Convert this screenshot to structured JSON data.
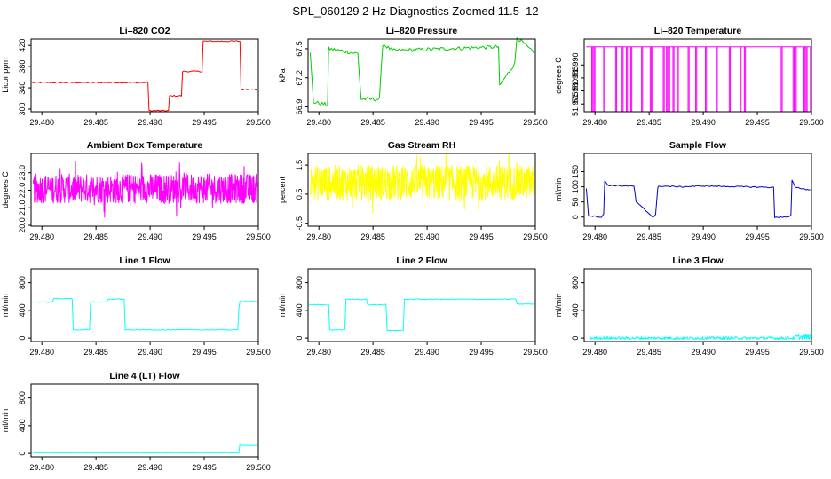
{
  "title": "SPL_060129  2 Hz Diagnostics Zoomed 11.5–12",
  "colors": {
    "co2": "#ff0000",
    "pressure": "#00cc00",
    "temperature": "#ff00ff",
    "ambient": "#ff00ff",
    "rh": "#ffff00",
    "sample": "#0000cc",
    "line": "#00ffff"
  },
  "chart_data": [
    {
      "type": "line",
      "title": "Li–820 CO2",
      "ylabel": "Licor ppm",
      "xlim": [
        29.479,
        29.5
      ],
      "ylim": [
        295,
        432
      ],
      "xticks": [
        29.48,
        29.485,
        29.49,
        29.495,
        29.5
      ],
      "xtick_labels": [
        "29.480",
        "29.485",
        "29.490",
        "29.495",
        "29.500"
      ],
      "yticks": [
        300,
        340,
        380,
        420
      ],
      "ytick_labels": [
        "300",
        "340",
        "380",
        "420"
      ],
      "color": "#ff0000",
      "noise": 1.2,
      "x": [
        29.4791,
        29.4898,
        29.4899,
        29.4917,
        29.4918,
        29.4929,
        29.493,
        29.4948,
        29.4949,
        29.4983,
        29.4984,
        29.4999
      ],
      "y": [
        350,
        350,
        297,
        297,
        325,
        325,
        371,
        371,
        428,
        428,
        337,
        337
      ]
    },
    {
      "type": "line",
      "title": "Li–820 Pressure",
      "ylabel": "kPa",
      "xlim": [
        29.479,
        29.5
      ],
      "ylim": [
        66.85,
        67.6
      ],
      "xticks": [
        29.48,
        29.485,
        29.49,
        29.495,
        29.5
      ],
      "xtick_labels": [
        "29.480",
        "29.485",
        "29.490",
        "29.495",
        "29.500"
      ],
      "yticks": [
        66.9,
        67.2,
        67.5
      ],
      "ytick_labels": [
        "66.9",
        "67.2",
        "67.5"
      ],
      "color": "#00cc00",
      "noise": 0.02,
      "x": [
        29.4792,
        29.4795,
        29.4808,
        29.4809,
        29.4836,
        29.4839,
        29.4856,
        29.4859,
        29.4868,
        29.4966,
        29.4967,
        29.4981,
        29.4983,
        29.4999
      ],
      "y": [
        67.45,
        66.95,
        66.92,
        67.5,
        67.45,
        66.98,
        66.98,
        67.55,
        67.48,
        67.52,
        67.12,
        67.35,
        67.62,
        67.45
      ]
    },
    {
      "type": "line",
      "title": "Li–820 Temperature",
      "ylabel": "degrees C",
      "xlim": [
        29.479,
        29.5
      ],
      "ylim": [
        51.972,
        52.0
      ],
      "xticks": [
        29.48,
        29.485,
        29.49,
        29.495,
        29.5
      ],
      "xtick_labels": [
        "29.480",
        "29.485",
        "29.490",
        "29.495",
        "29.500"
      ],
      "yticks": [
        51.975,
        51.98,
        51.985,
        51.99
      ],
      "ytick_labels": [
        "51.975",
        "51.980",
        "51.985",
        "51.990"
      ],
      "color": "#ff00ff",
      "base": 51.997,
      "low": 51.972,
      "drops": [
        29.4797,
        29.4799,
        29.4808,
        29.4819,
        29.4825,
        29.4829,
        29.4833,
        29.4843,
        29.4851,
        29.4852,
        29.4863,
        29.4866,
        29.4868,
        29.4872,
        29.4876,
        29.4886,
        29.4893,
        29.4902,
        29.4912,
        29.4924,
        29.4934,
        29.4938,
        29.4972,
        29.4983,
        29.4985,
        29.4993,
        29.4995,
        29.4999
      ]
    },
    {
      "type": "line",
      "title": "Ambient Box Temperature",
      "ylabel": "degrees C",
      "xlim": [
        29.479,
        29.5
      ],
      "ylim": [
        19.95,
        24.1
      ],
      "xticks": [
        29.48,
        29.485,
        29.49,
        29.495,
        29.5
      ],
      "xtick_labels": [
        "29.480",
        "29.485",
        "29.490",
        "29.495",
        "29.500"
      ],
      "yticks": [
        20,
        21,
        22,
        23
      ],
      "ytick_labels": [
        "20.0",
        "21.0",
        "22.0",
        "23.0"
      ],
      "color": "#ff00ff",
      "mean": 22.1,
      "spread": 1.4
    },
    {
      "type": "line",
      "title": "Gas Stream RH",
      "ylabel": "percent",
      "xlim": [
        29.479,
        29.5
      ],
      "ylim": [
        -0.6,
        1.9
      ],
      "xticks": [
        29.48,
        29.485,
        29.49,
        29.495,
        29.5
      ],
      "xtick_labels": [
        "29.480",
        "29.485",
        "29.490",
        "29.495",
        "29.500"
      ],
      "yticks": [
        -0.5,
        0.5,
        1.5
      ],
      "ytick_labels": [
        "-0.5",
        "0.5",
        "1.5"
      ],
      "color": "#ffff00",
      "mean": 0.9,
      "spread": 1.0
    },
    {
      "type": "line",
      "title": "Sample Flow",
      "ylabel": "ml/min",
      "xlim": [
        29.479,
        29.5
      ],
      "ylim": [
        -30,
        210
      ],
      "xticks": [
        29.48,
        29.485,
        29.49,
        29.495,
        29.5
      ],
      "xtick_labels": [
        "29.480",
        "29.485",
        "29.490",
        "29.495",
        "29.500"
      ],
      "yticks": [
        0,
        50,
        100,
        150
      ],
      "ytick_labels": [
        "0",
        "50",
        "100",
        "150"
      ],
      "color": "#0000cc",
      "noise": 2,
      "x": [
        29.4792,
        29.4794,
        29.4806,
        29.4808,
        29.4809,
        29.4812,
        29.4836,
        29.4838,
        29.4852,
        29.4854,
        29.4856,
        29.4858,
        29.4859,
        29.4862,
        29.488,
        29.49,
        29.4965,
        29.4966,
        29.4979,
        29.4981,
        29.4982,
        29.4985,
        29.4992,
        29.4999
      ],
      "y": [
        95,
        5,
        0,
        10,
        120,
        105,
        102,
        50,
        5,
        0,
        10,
        95,
        103,
        102,
        100,
        103,
        98,
        0,
        0,
        5,
        120,
        100,
        93,
        90
      ]
    },
    {
      "type": "line",
      "title": "Line 1 Flow",
      "ylabel": "ml/min",
      "xlim": [
        29.479,
        29.5
      ],
      "ylim": [
        -50,
        1000
      ],
      "xticks": [
        29.48,
        29.485,
        29.49,
        29.495,
        29.5
      ],
      "xtick_labels": [
        "29.480",
        "29.485",
        "29.490",
        "29.495",
        "29.500"
      ],
      "yticks": [
        0,
        400,
        800
      ],
      "ytick_labels": [
        "0",
        "400",
        "800"
      ],
      "color": "#00ffff",
      "noise": 6,
      "x": [
        29.4791,
        29.481,
        29.4811,
        29.4828,
        29.4829,
        29.4844,
        29.4845,
        29.486,
        29.4861,
        29.4876,
        29.4877,
        29.4981,
        29.4982,
        29.4983,
        29.4999
      ],
      "y": [
        520,
        520,
        570,
        570,
        120,
        120,
        520,
        520,
        560,
        560,
        120,
        120,
        420,
        530,
        530
      ]
    },
    {
      "type": "line",
      "title": "Line 2 Flow",
      "ylabel": "ml/min",
      "xlim": [
        29.479,
        29.5
      ],
      "ylim": [
        -50,
        1000
      ],
      "xticks": [
        29.48,
        29.485,
        29.49,
        29.495,
        29.5
      ],
      "xtick_labels": [
        "29.480",
        "29.485",
        "29.490",
        "29.495",
        "29.500"
      ],
      "yticks": [
        0,
        400,
        800
      ],
      "ytick_labels": [
        "0",
        "400",
        "800"
      ],
      "color": "#00ffff",
      "noise": 6,
      "x": [
        29.4791,
        29.4809,
        29.481,
        29.4824,
        29.4825,
        29.4844,
        29.4845,
        29.4862,
        29.4863,
        29.4878,
        29.4879,
        29.4982,
        29.4983,
        29.4999
      ],
      "y": [
        480,
        480,
        120,
        120,
        560,
        560,
        480,
        480,
        110,
        110,
        560,
        560,
        490,
        490
      ]
    },
    {
      "type": "line",
      "title": "Line 3 Flow",
      "ylabel": "ml/min",
      "xlim": [
        29.479,
        29.5
      ],
      "ylim": [
        -50,
        1000
      ],
      "xticks": [
        29.48,
        29.485,
        29.49,
        29.495,
        29.5
      ],
      "xtick_labels": [
        "29.480",
        "29.485",
        "29.490",
        "29.495",
        "29.500"
      ],
      "yticks": [
        0,
        400,
        800
      ],
      "ytick_labels": [
        "0",
        "400",
        "800"
      ],
      "color": "#00ffff",
      "band": [
        -20,
        20
      ],
      "start": 29.4795,
      "end": 29.4999
    },
    {
      "type": "line",
      "title": "Line 4 (LT) Flow",
      "ylabel": "ml/min",
      "xlim": [
        29.479,
        29.5
      ],
      "ylim": [
        -50,
        1000
      ],
      "xticks": [
        29.48,
        29.485,
        29.49,
        29.495,
        29.5
      ],
      "xtick_labels": [
        "29.480",
        "29.485",
        "29.490",
        "29.495",
        "29.500"
      ],
      "yticks": [
        0,
        400,
        800
      ],
      "ytick_labels": [
        "0",
        "400",
        "800"
      ],
      "color": "#00ffff",
      "noise": 1,
      "x": [
        29.4792,
        29.4982,
        29.4983,
        29.4985,
        29.4999
      ],
      "y": [
        10,
        10,
        140,
        115,
        115
      ]
    }
  ]
}
